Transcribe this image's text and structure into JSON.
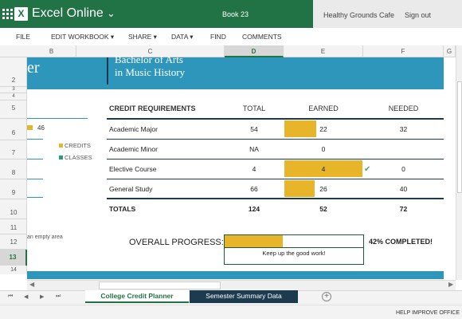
{
  "titlebar": {
    "app_name": "Excel Online",
    "logo_letter": "X",
    "chevron": "⌄",
    "book_name": "Book 23",
    "user_name": "Healthy Grounds Cafe",
    "sign_out": "Sign out"
  },
  "menu": {
    "items": [
      "FILE",
      "EDIT WORKBOOK ▾",
      "SHARE ▾",
      "DATA ▾",
      "FIND",
      "COMMENTS"
    ]
  },
  "columns": [
    "B",
    "C",
    "D",
    "E",
    "F",
    "G"
  ],
  "active_column": "D",
  "rows": [
    "2",
    "3",
    "4",
    "5",
    "6",
    "7",
    "8",
    "9",
    "10",
    "11",
    "12",
    "13",
    "14"
  ],
  "active_row": "13",
  "banner": {
    "left_fragment": "er",
    "degree_line1": "Bachelor of Arts",
    "degree_line2": "in Music History"
  },
  "sidebar": {
    "bar_value": "46",
    "legend": [
      {
        "label": "CREDITS",
        "color": "#e8b52a"
      },
      {
        "label": "CLASSES",
        "color": "#2f9a78"
      }
    ],
    "empty_note": "an empty area"
  },
  "table": {
    "headers": {
      "requirement": "CREDIT REQUIREMENTS",
      "total": "TOTAL",
      "earned": "EARNED",
      "needed": "NEEDED"
    },
    "rows": [
      {
        "label": "Academic Major",
        "total": "54",
        "earned": "22",
        "needed": "32",
        "earned_fraction": 0.41,
        "check": ""
      },
      {
        "label": "Academic Minor",
        "total": "NA",
        "earned": "0",
        "needed": "",
        "earned_fraction": 0,
        "check": ""
      },
      {
        "label": "Elective Course",
        "total": "4",
        "earned": "4",
        "needed": "0",
        "earned_fraction": 1.0,
        "check": "✔"
      },
      {
        "label": "General Study",
        "total": "66",
        "earned": "26",
        "needed": "40",
        "earned_fraction": 0.39,
        "check": ""
      }
    ],
    "totals": {
      "label": "TOTALS",
      "total": "124",
      "earned": "52",
      "needed": "72"
    }
  },
  "progress": {
    "label": "OVERALL PROGRESS:",
    "percent": 42,
    "message": "Keep up the good work!",
    "completed_text": "42% COMPLETED!"
  },
  "sheets": {
    "active": "College Credit Planner",
    "other": "Semester Summary Data",
    "add_icon": "+"
  },
  "nav_arrows": [
    "⏮",
    "◀",
    "▶",
    "⏭"
  ],
  "status": {
    "help": "HELP IMPROVE OFFICE"
  },
  "colors": {
    "excel_green": "#217346",
    "teal": "#2e95bb",
    "navy": "#1d3b4f",
    "gold": "#e8b52a"
  }
}
